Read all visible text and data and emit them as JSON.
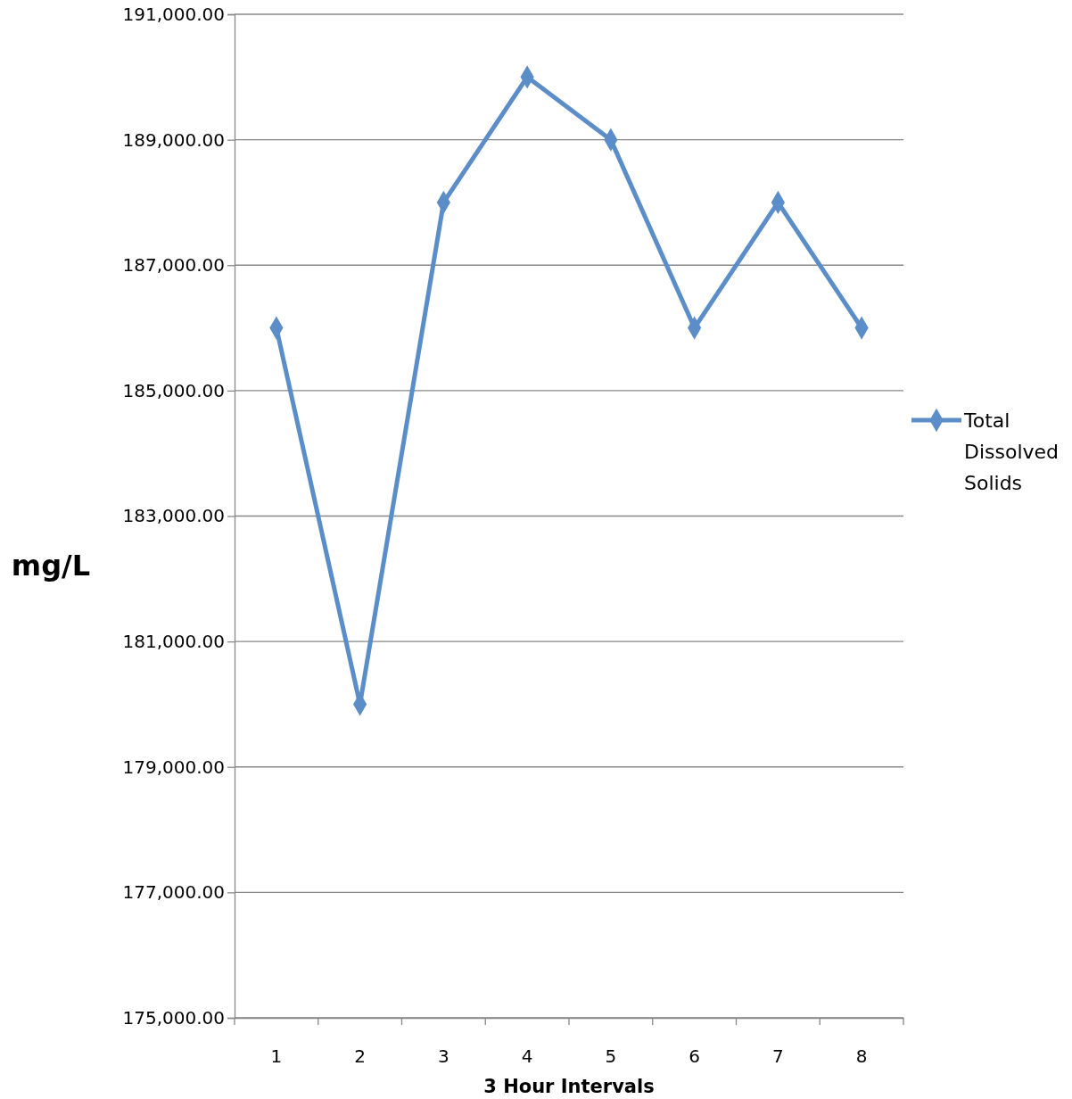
{
  "chart_data": {
    "type": "line",
    "xlabel": "3 Hour Intervals",
    "ylabel": "mg/L",
    "categories": [
      "1",
      "2",
      "3",
      "4",
      "5",
      "6",
      "7",
      "8"
    ],
    "series": [
      {
        "name": "Total Dissolved Solids",
        "color": "#5b8ec8",
        "values": [
          186000,
          180000,
          188000,
          190000,
          189000,
          186000,
          188000,
          186000
        ]
      }
    ],
    "ylim": [
      175000,
      191000
    ],
    "yticks": [
      {
        "value": 175000,
        "label": "175,000.00"
      },
      {
        "value": 177000,
        "label": "177,000.00"
      },
      {
        "value": 179000,
        "label": "179,000.00"
      },
      {
        "value": 181000,
        "label": "181,000.00"
      },
      {
        "value": 183000,
        "label": "183,000.00"
      },
      {
        "value": 185000,
        "label": "185,000.00"
      },
      {
        "value": 187000,
        "label": "187,000.00"
      },
      {
        "value": 189000,
        "label": "189,000.00"
      },
      {
        "value": 191000,
        "label": "191,000.00"
      }
    ],
    "grid": "y",
    "legend": "right",
    "marker": "diamond",
    "line_style": "solid"
  }
}
